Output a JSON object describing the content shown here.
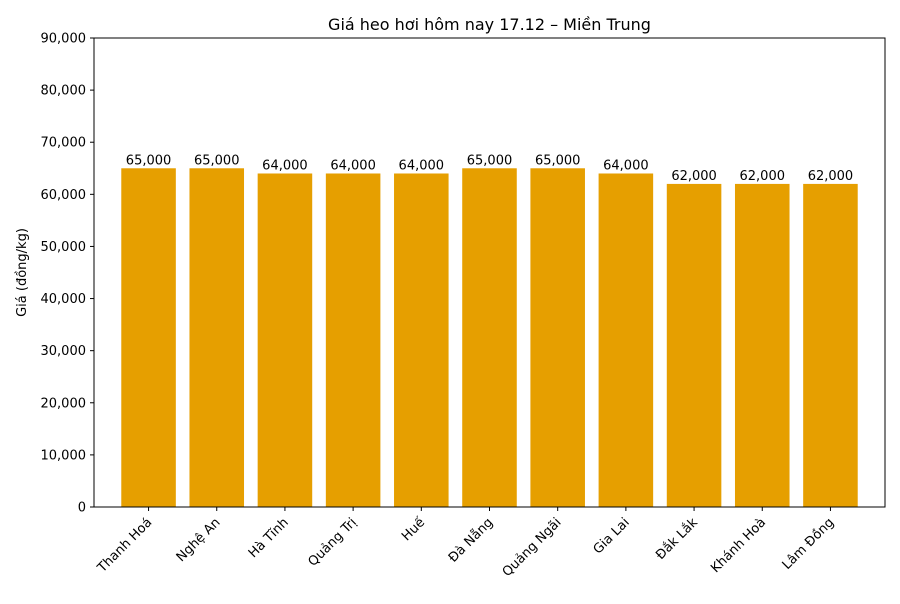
{
  "chart_data": {
    "type": "bar",
    "title": "Giá heo hơi hôm nay 17.12 – Miền Trung",
    "xlabel": "",
    "ylabel": "Giá (đồng/kg)",
    "categories": [
      "Thanh Hoá",
      "Nghệ An",
      "Hà Tĩnh",
      "Quảng Trị",
      "Huế",
      "Đà Nẵng",
      "Quảng Ngãi",
      "Gia Lai",
      "Đắk Lắk",
      "Khánh Hoà",
      "Lâm Đồng"
    ],
    "values": [
      65000,
      65000,
      64000,
      64000,
      64000,
      65000,
      65000,
      64000,
      62000,
      62000,
      62000
    ],
    "value_labels": [
      "65,000",
      "65,000",
      "64,000",
      "64,000",
      "64,000",
      "65,000",
      "65,000",
      "64,000",
      "62,000",
      "62,000",
      "62,000"
    ],
    "ylim": [
      0,
      90000
    ],
    "yticks": [
      0,
      10000,
      20000,
      30000,
      40000,
      50000,
      60000,
      70000,
      80000,
      90000
    ],
    "ytick_labels": [
      "0",
      "10,000",
      "20,000",
      "30,000",
      "40,000",
      "50,000",
      "60,000",
      "70,000",
      "80,000",
      "90,000"
    ],
    "bar_color": "#E69F00",
    "grid": false,
    "legend": "none"
  }
}
